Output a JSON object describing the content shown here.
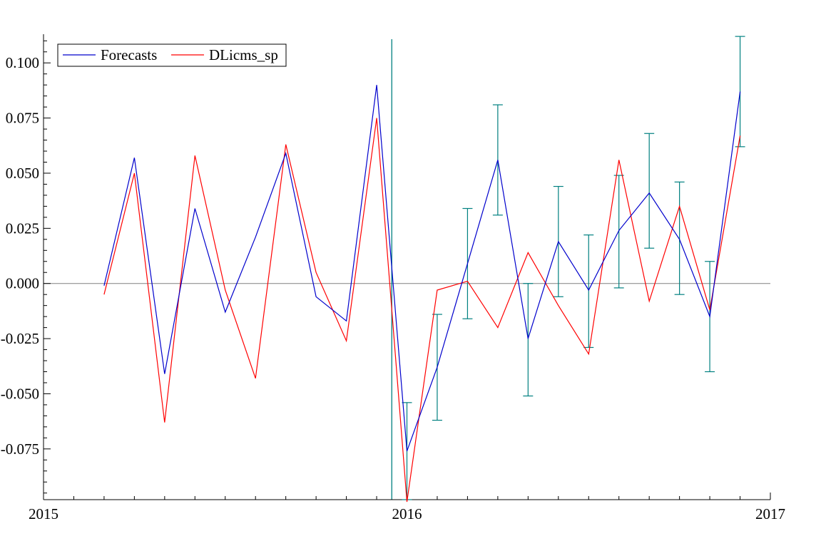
{
  "chart_data": {
    "type": "line",
    "title": "",
    "xlabel": "",
    "ylabel": "",
    "xlim": [
      2015,
      2017
    ],
    "ylim": [
      -0.098,
      0.113
    ],
    "x_ticks": [
      {
        "value": 2015,
        "label": "2015"
      },
      {
        "value": 2016,
        "label": "2016"
      },
      {
        "value": 2017,
        "label": "2017"
      }
    ],
    "y_ticks": [
      {
        "value": 0.1,
        "label": "0.100"
      },
      {
        "value": 0.075,
        "label": "0.075"
      },
      {
        "value": 0.05,
        "label": "0.050"
      },
      {
        "value": 0.025,
        "label": "0.025"
      },
      {
        "value": 0.0,
        "label": "0.000"
      },
      {
        "value": -0.025,
        "label": "-0.025"
      },
      {
        "value": -0.05,
        "label": "-0.050"
      },
      {
        "value": -0.075,
        "label": "-0.075"
      }
    ],
    "legend": {
      "position": "top-left",
      "entries": [
        "Forecasts",
        "DLicms_sp"
      ]
    },
    "x": [
      2015.1667,
      2015.25,
      2015.3333,
      2015.4167,
      2015.5,
      2015.5833,
      2015.6667,
      2015.75,
      2015.8333,
      2015.9167,
      2016.0,
      2016.0833,
      2016.1667,
      2016.25,
      2016.3333,
      2016.4167,
      2016.5,
      2016.5833,
      2016.6667,
      2016.75,
      2016.8333,
      2016.9167
    ],
    "series": [
      {
        "name": "Forecasts",
        "color": "#0000cc",
        "values": [
          -0.001,
          0.057,
          -0.041,
          0.034,
          -0.013,
          0.021,
          0.059,
          -0.006,
          -0.017,
          0.09,
          -0.076,
          -0.038,
          0.009,
          0.056,
          -0.025,
          0.019,
          -0.003,
          0.024,
          0.041,
          0.02,
          -0.015,
          0.087
        ]
      },
      {
        "name": "DLicms_sp",
        "color": "#ff0000",
        "values": [
          -0.005,
          0.05,
          -0.063,
          0.058,
          -0.003,
          -0.043,
          0.063,
          0.005,
          -0.026,
          0.075,
          -0.099,
          -0.003,
          0.001,
          -0.02,
          0.014,
          -0.01,
          -0.032,
          0.056,
          -0.008,
          0.035,
          -0.012,
          0.067
        ]
      }
    ],
    "error_bars": {
      "color": "#008080",
      "x": [
        2016.0,
        2016.0833,
        2016.1667,
        2016.25,
        2016.3333,
        2016.4167,
        2016.5,
        2016.5833,
        2016.6667,
        2016.75,
        2016.8333,
        2016.9167
      ],
      "low": [
        -0.098,
        -0.062,
        -0.016,
        0.031,
        -0.051,
        -0.006,
        -0.029,
        -0.002,
        0.016,
        -0.005,
        -0.04,
        0.062
      ],
      "high": [
        -0.054,
        -0.014,
        0.034,
        0.081,
        0.0,
        0.044,
        0.022,
        0.049,
        0.068,
        0.046,
        0.01,
        0.112
      ]
    },
    "forecast_start_marker": {
      "x": 2015.9583,
      "color": "#008080"
    },
    "zero_line": {
      "y": 0.0,
      "color": "#808080"
    }
  }
}
